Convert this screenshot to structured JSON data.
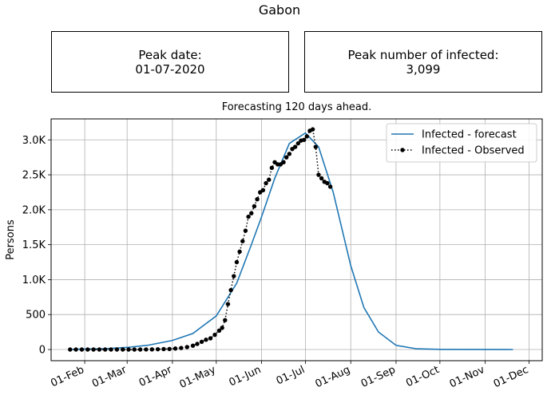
{
  "title": "Gabon",
  "kpis": {
    "peak_date_label": "Peak date:",
    "peak_date_value": "01-07-2020",
    "peak_infected_label": "Peak number of infected:",
    "peak_infected_value": "3,099"
  },
  "chart_subtitle": "Forecasting 120 days ahead.",
  "chart_data": {
    "type": "line",
    "title": "Forecasting 120 days ahead.",
    "xlabel": "",
    "ylabel": "Persons",
    "x_axis": "date",
    "xlim": [
      "2020-01-09",
      "2020-12-10"
    ],
    "ylim": [
      -160,
      3300
    ],
    "grid": true,
    "legend_position": "top-right",
    "x_ticks": [
      {
        "date": "2020-02-01",
        "label": "01-Feb"
      },
      {
        "date": "2020-03-01",
        "label": "01-Mar"
      },
      {
        "date": "2020-04-01",
        "label": "01-Apr"
      },
      {
        "date": "2020-05-01",
        "label": "01-May"
      },
      {
        "date": "2020-06-01",
        "label": "01-Jun"
      },
      {
        "date": "2020-07-01",
        "label": "01-Jul"
      },
      {
        "date": "2020-08-01",
        "label": "01-Aug"
      },
      {
        "date": "2020-09-01",
        "label": "01-Sep"
      },
      {
        "date": "2020-10-01",
        "label": "01-Oct"
      },
      {
        "date": "2020-11-01",
        "label": "01-Nov"
      },
      {
        "date": "2020-12-01",
        "label": "01-Dec"
      }
    ],
    "y_ticks": [
      {
        "value": 0,
        "label": "0"
      },
      {
        "value": 500,
        "label": "500"
      },
      {
        "value": 1000,
        "label": "1.0K"
      },
      {
        "value": 1500,
        "label": "1.5K"
      },
      {
        "value": 2000,
        "label": "2.0K"
      },
      {
        "value": 2500,
        "label": "2.5K"
      },
      {
        "value": 3000,
        "label": "3.0K"
      }
    ],
    "series": [
      {
        "name": "Infected - forecast",
        "style": "solid",
        "color": "#1f77b4",
        "points": [
          [
            "2020-01-22",
            2
          ],
          [
            "2020-02-15",
            12
          ],
          [
            "2020-03-01",
            30
          ],
          [
            "2020-03-15",
            60
          ],
          [
            "2020-04-01",
            130
          ],
          [
            "2020-04-15",
            230
          ],
          [
            "2020-05-01",
            480
          ],
          [
            "2020-05-15",
            950
          ],
          [
            "2020-05-25",
            1500
          ],
          [
            "2020-06-01",
            1900
          ],
          [
            "2020-06-10",
            2450
          ],
          [
            "2020-06-20",
            2950
          ],
          [
            "2020-07-01",
            3099
          ],
          [
            "2020-07-10",
            2900
          ],
          [
            "2020-07-20",
            2250
          ],
          [
            "2020-08-01",
            1200
          ],
          [
            "2020-08-10",
            600
          ],
          [
            "2020-08-20",
            250
          ],
          [
            "2020-09-01",
            60
          ],
          [
            "2020-09-15",
            10
          ],
          [
            "2020-10-01",
            2
          ],
          [
            "2020-11-20",
            0
          ]
        ]
      },
      {
        "name": "Infected - Observed",
        "style": "dotted-markers",
        "color": "#000000",
        "points": [
          [
            "2020-01-22",
            0
          ],
          [
            "2020-01-26",
            0
          ],
          [
            "2020-01-30",
            0
          ],
          [
            "2020-02-03",
            0
          ],
          [
            "2020-02-07",
            0
          ],
          [
            "2020-02-11",
            0
          ],
          [
            "2020-02-15",
            0
          ],
          [
            "2020-02-19",
            0
          ],
          [
            "2020-02-23",
            0
          ],
          [
            "2020-02-27",
            0
          ],
          [
            "2020-03-02",
            0
          ],
          [
            "2020-03-06",
            0
          ],
          [
            "2020-03-10",
            0
          ],
          [
            "2020-03-14",
            1
          ],
          [
            "2020-03-18",
            2
          ],
          [
            "2020-03-22",
            4
          ],
          [
            "2020-03-26",
            6
          ],
          [
            "2020-03-30",
            8
          ],
          [
            "2020-04-03",
            14
          ],
          [
            "2020-04-07",
            22
          ],
          [
            "2020-04-11",
            35
          ],
          [
            "2020-04-15",
            55
          ],
          [
            "2020-04-18",
            80
          ],
          [
            "2020-04-21",
            110
          ],
          [
            "2020-04-24",
            140
          ],
          [
            "2020-04-27",
            160
          ],
          [
            "2020-04-30",
            210
          ],
          [
            "2020-05-03",
            270
          ],
          [
            "2020-05-05",
            310
          ],
          [
            "2020-05-07",
            420
          ],
          [
            "2020-05-09",
            650
          ],
          [
            "2020-05-11",
            850
          ],
          [
            "2020-05-13",
            1050
          ],
          [
            "2020-05-15",
            1250
          ],
          [
            "2020-05-17",
            1400
          ],
          [
            "2020-05-19",
            1550
          ],
          [
            "2020-05-21",
            1700
          ],
          [
            "2020-05-23",
            1900
          ],
          [
            "2020-05-25",
            1950
          ],
          [
            "2020-05-27",
            2050
          ],
          [
            "2020-05-29",
            2150
          ],
          [
            "2020-05-31",
            2250
          ],
          [
            "2020-06-02",
            2280
          ],
          [
            "2020-06-04",
            2380
          ],
          [
            "2020-06-06",
            2430
          ],
          [
            "2020-06-08",
            2600
          ],
          [
            "2020-06-10",
            2680
          ],
          [
            "2020-06-12",
            2650
          ],
          [
            "2020-06-14",
            2650
          ],
          [
            "2020-06-16",
            2680
          ],
          [
            "2020-06-18",
            2750
          ],
          [
            "2020-06-20",
            2800
          ],
          [
            "2020-06-22",
            2870
          ],
          [
            "2020-06-24",
            2900
          ],
          [
            "2020-06-26",
            2950
          ],
          [
            "2020-06-28",
            2990
          ],
          [
            "2020-06-30",
            3000
          ],
          [
            "2020-07-02",
            3050
          ],
          [
            "2020-07-04",
            3130
          ],
          [
            "2020-07-06",
            3150
          ],
          [
            "2020-07-08",
            2900
          ],
          [
            "2020-07-10",
            2500
          ],
          [
            "2020-07-12",
            2450
          ],
          [
            "2020-07-14",
            2400
          ],
          [
            "2020-07-16",
            2380
          ],
          [
            "2020-07-18",
            2330
          ]
        ]
      }
    ]
  }
}
